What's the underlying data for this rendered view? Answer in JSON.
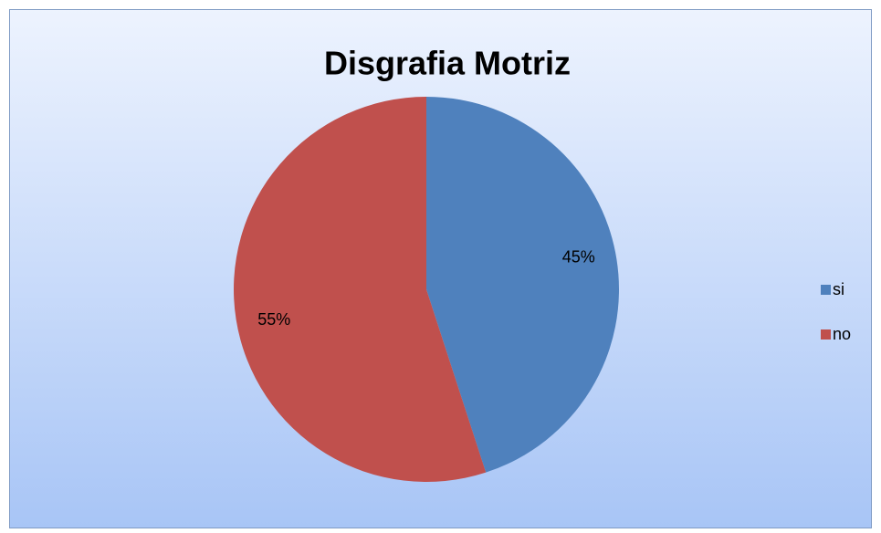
{
  "chart_data": {
    "type": "pie",
    "title": "Disgrafia Motriz",
    "categories": [
      "si",
      "no"
    ],
    "values": [
      45,
      55
    ],
    "value_labels": [
      "45%",
      "55%"
    ],
    "colors": [
      "#4f81bd",
      "#c0504d"
    ],
    "legend": "right"
  }
}
